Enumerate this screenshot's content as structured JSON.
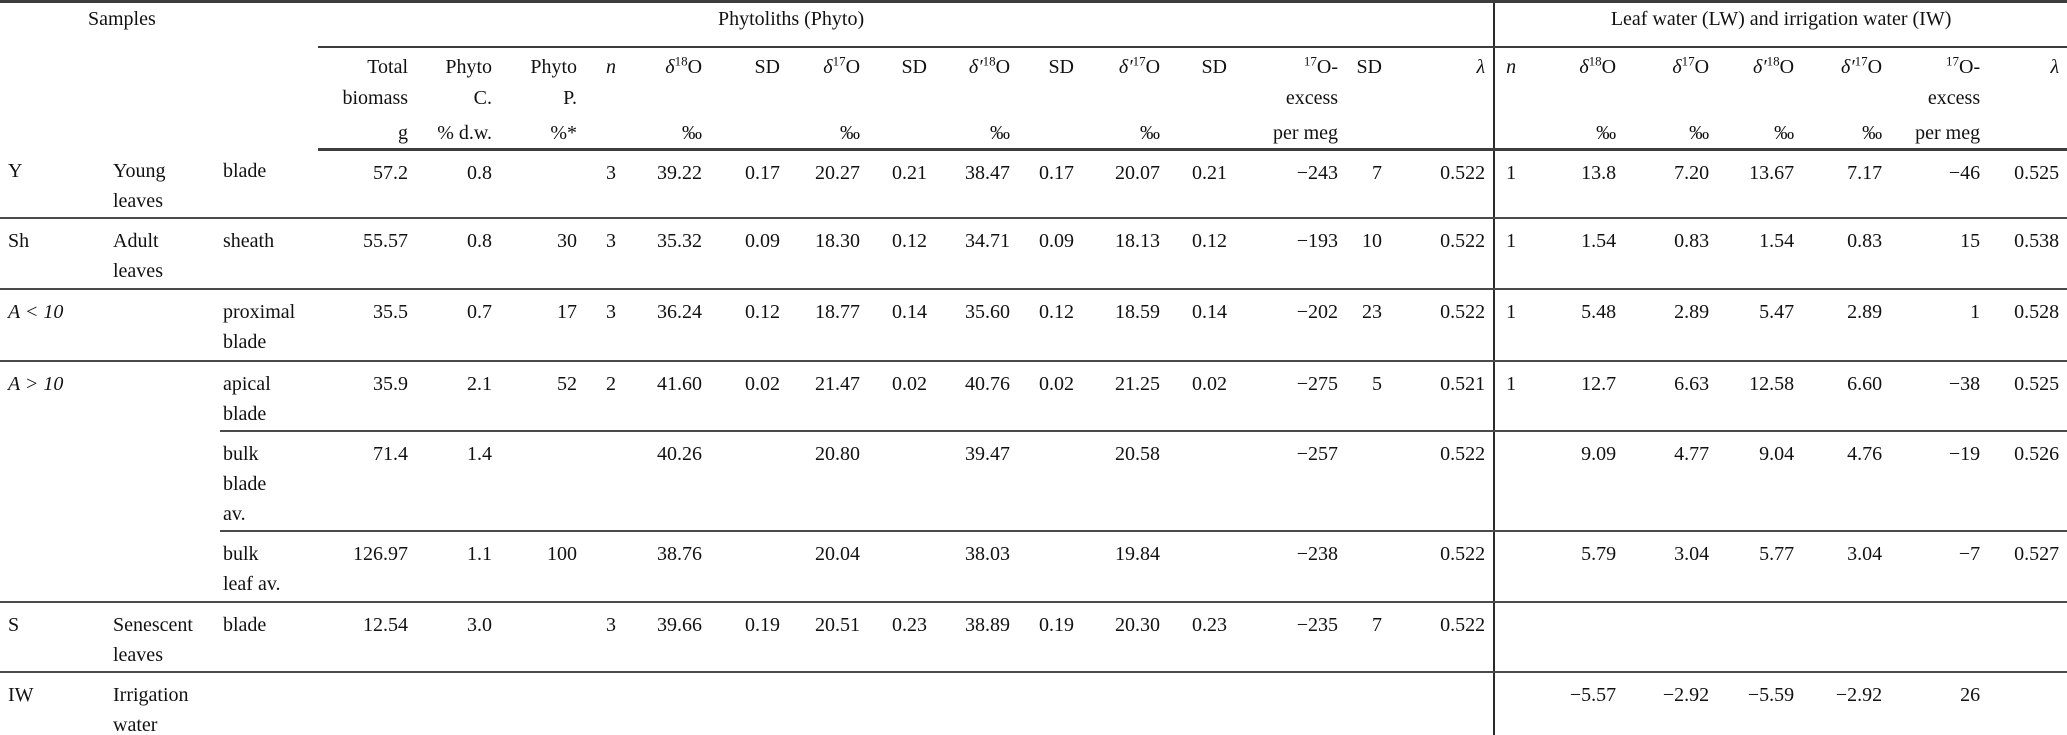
{
  "table": {
    "header": {
      "samples": "Samples",
      "phyto_group": "Phytoliths (Phyto)",
      "lw_group": "Leaf water (LW) and irrigation water (IW)",
      "total": {
        "l1": "Total",
        "l2": "biomass",
        "unit": "g"
      },
      "phyto_c": {
        "l1": "Phyto",
        "l2": "C.",
        "unit": "% d.w."
      },
      "phyto_p": {
        "l1": "Phyto",
        "l2": "P.",
        "unit": "%*"
      },
      "n": "n",
      "sd": "SD",
      "d18": {
        "sym": "δ",
        "sup": "18",
        "base": "O"
      },
      "d17": {
        "sym": "δ",
        "sup": "17",
        "base": "O"
      },
      "dp18": {
        "sym": "δ′",
        "sup": "18",
        "base": "O"
      },
      "dp17": {
        "sym": "δ′",
        "sup": "17",
        "base": "O"
      },
      "oexcess": {
        "sup": "17",
        "l1rest": "O-",
        "l2": "excess",
        "unit": "per meg"
      },
      "lambda": "λ",
      "permil": "‰"
    },
    "rows": [
      {
        "cells": [
          "Y",
          "Young\nleaves",
          "blade",
          "57.2",
          "0.8",
          "",
          "3",
          "39.22",
          "0.17",
          "20.27",
          "0.21",
          "38.47",
          "0.17",
          "20.07",
          "0.21",
          "−243",
          "7",
          "0.522",
          "1",
          "13.8",
          "7.20",
          "13.67",
          "7.17",
          "−46",
          "0.525"
        ]
      },
      {
        "cells": [
          "Sh",
          "Adult\nleaves",
          "sheath",
          "55.57",
          "0.8",
          "30",
          "3",
          "35.32",
          "0.09",
          "18.30",
          "0.12",
          "34.71",
          "0.09",
          "18.13",
          "0.12",
          "−193",
          "10",
          "0.522",
          "1",
          "1.54",
          "0.83",
          "1.54",
          "0.83",
          "15",
          "0.538"
        ]
      },
      {
        "cells": [
          "A < 10",
          "",
          "proximal\nblade",
          "35.5",
          "0.7",
          "17",
          "3",
          "36.24",
          "0.12",
          "18.77",
          "0.14",
          "35.60",
          "0.12",
          "18.59",
          "0.14",
          "−202",
          "23",
          "0.522",
          "1",
          "5.48",
          "2.89",
          "5.47",
          "2.89",
          "1",
          "0.528"
        ]
      },
      {
        "cells": [
          "A > 10",
          "",
          "apical\nblade",
          "35.9",
          "2.1",
          "52",
          "2",
          "41.60",
          "0.02",
          "21.47",
          "0.02",
          "40.76",
          "0.02",
          "21.25",
          "0.02",
          "−275",
          "5",
          "0.521",
          "1",
          "12.7",
          "6.63",
          "12.58",
          "6.60",
          "−38",
          "0.525"
        ]
      },
      {
        "cells": [
          "",
          "",
          "bulk\nblade\nav.",
          "71.4",
          "1.4",
          "",
          "",
          "40.26",
          "",
          "20.80",
          "",
          "39.47",
          "",
          "20.58",
          "",
          "−257",
          "",
          "0.522",
          "",
          "9.09",
          "4.77",
          "9.04",
          "4.76",
          "−19",
          "0.526"
        ]
      },
      {
        "cells": [
          "",
          "",
          "bulk\nleaf av.",
          "126.97",
          "1.1",
          "100",
          "",
          "38.76",
          "",
          "20.04",
          "",
          "38.03",
          "",
          "19.84",
          "",
          "−238",
          "",
          "0.522",
          "",
          "5.79",
          "3.04",
          "5.77",
          "3.04",
          "−7",
          "0.527"
        ]
      },
      {
        "cells": [
          "S",
          "Senescent\nleaves",
          "blade",
          "12.54",
          "3.0",
          "",
          "3",
          "39.66",
          "0.19",
          "20.51",
          "0.23",
          "38.89",
          "0.19",
          "20.30",
          "0.23",
          "−235",
          "7",
          "0.522",
          "",
          "",
          "",
          "",
          "",
          "",
          ""
        ]
      },
      {
        "cells": [
          "IW",
          "Irrigation\nwater",
          "",
          "",
          "",
          "",
          "",
          "",
          "",
          "",
          "",
          "",
          "",
          "",
          "",
          "",
          "",
          "",
          "",
          "−5.57",
          "−2.92",
          "−5.59",
          "−2.92",
          "26",
          ""
        ]
      }
    ]
  }
}
